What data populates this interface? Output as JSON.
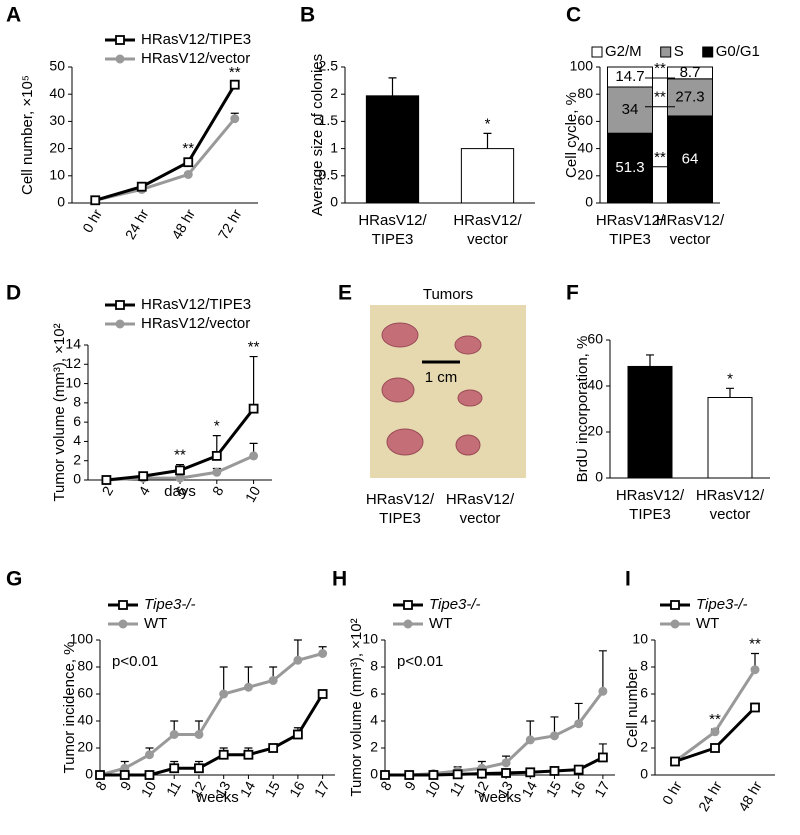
{
  "chart_data": [
    {
      "panel": "A",
      "type": "line",
      "categories": [
        "0 hr",
        "24 hr",
        "48 hr",
        "72 hr"
      ],
      "y_label": "Cell number, ×10⁵",
      "ylim": [
        0,
        50
      ],
      "yticks": [
        0,
        10,
        20,
        30,
        40,
        50
      ],
      "series": [
        {
          "name": "HRasV12/TIPE3",
          "color": "#000000",
          "marker": "square",
          "values": [
            1,
            6,
            15,
            43.5
          ],
          "errors": [
            0.3,
            0.5,
            1.5,
            1
          ]
        },
        {
          "name": "HRasV12/vector",
          "color": "#999999",
          "marker": "circle",
          "values": [
            1,
            5,
            10.5,
            31
          ],
          "errors": [
            0.3,
            0.5,
            0.5,
            2
          ]
        }
      ],
      "significance": [
        null,
        null,
        "**",
        "**"
      ]
    },
    {
      "panel": "B",
      "type": "bar",
      "categories": [
        [
          "HRasV12/",
          "TIPE3"
        ],
        [
          "HRasV12/",
          "vector"
        ]
      ],
      "y_label": "Average size of colonies",
      "ylim": [
        0,
        2.5
      ],
      "yticks": [
        0,
        0.5,
        1,
        1.5,
        2,
        2.5
      ],
      "values": [
        1.97,
        1.0
      ],
      "errors": [
        0.33,
        0.28
      ],
      "colors": [
        "#000000",
        "#ffffff"
      ],
      "significance": [
        null,
        "*"
      ]
    },
    {
      "panel": "C",
      "type": "stacked_bar",
      "categories": [
        [
          "HRasV12/",
          "TIPE3"
        ],
        [
          "HRasV12/",
          "vector"
        ]
      ],
      "y_label": "Cell cycle, %",
      "ylim": [
        0,
        100
      ],
      "yticks": [
        0,
        20,
        40,
        60,
        80,
        100
      ],
      "series": [
        {
          "name": "G0/G1",
          "color": "#000000",
          "values": [
            51.3,
            64
          ]
        },
        {
          "name": "S",
          "color": "#999999",
          "values": [
            34,
            27.3
          ]
        },
        {
          "name": "G2/M",
          "color": "#ffffff",
          "values": [
            14.7,
            8.7
          ]
        }
      ],
      "significance": [
        "**",
        "**",
        "**"
      ]
    },
    {
      "panel": "D",
      "type": "line",
      "x": [
        2,
        4,
        6,
        8,
        10
      ],
      "xlim": [
        1,
        11
      ],
      "xticks": [
        2,
        4,
        6,
        8,
        10
      ],
      "x_label": "days",
      "y_label": "Tumor volume (mm³), ×10²",
      "ylim": [
        0,
        14
      ],
      "yticks": [
        0,
        2,
        4,
        6,
        8,
        10,
        12,
        14
      ],
      "series": [
        {
          "name": "HRasV12/TIPE3",
          "color": "#000000",
          "marker": "square",
          "values": [
            0,
            0.4,
            1.0,
            2.5,
            7.4
          ],
          "errors": [
            0.1,
            0.3,
            0.6,
            2.1,
            5.4
          ]
        },
        {
          "name": "HRasV12/vector",
          "color": "#999999",
          "marker": "circle",
          "values": [
            0,
            0.2,
            0.2,
            0.8,
            2.5
          ],
          "errors": [
            0.05,
            0.1,
            0.1,
            0.4,
            1.3
          ]
        }
      ],
      "significance": [
        null,
        null,
        "**",
        "*",
        "**"
      ]
    },
    {
      "panel": "E",
      "type": "photo",
      "title": "Tumors",
      "annotation": "1 cm",
      "categories": [
        [
          "HRasV12/",
          "TIPE3"
        ],
        [
          "HRasV12/",
          "vector"
        ]
      ]
    },
    {
      "panel": "F",
      "type": "bar",
      "categories": [
        [
          "HRasV12/",
          "TIPE3"
        ],
        [
          "HRasV12/",
          "vector"
        ]
      ],
      "y_label": "BrdU incorporation, %",
      "ylim": [
        0,
        60
      ],
      "yticks": [
        0,
        20,
        40,
        60
      ],
      "values": [
        48.5,
        35
      ],
      "errors": [
        5,
        4
      ],
      "colors": [
        "#000000",
        "#ffffff"
      ],
      "significance": [
        null,
        "*"
      ]
    },
    {
      "panel": "G",
      "type": "line",
      "x": [
        8,
        9,
        10,
        11,
        12,
        13,
        14,
        15,
        16,
        17
      ],
      "xlim": [
        8,
        17.5
      ],
      "xticks": [
        8,
        9,
        10,
        11,
        12,
        13,
        14,
        15,
        16,
        17
      ],
      "x_label": "weeks",
      "y_label": "Tumor incidence, %",
      "ylim": [
        0,
        100
      ],
      "yticks": [
        0,
        20,
        40,
        60,
        80,
        100
      ],
      "annotation": "p<0.01",
      "series": [
        {
          "name": "Tipe3-/-",
          "italic": true,
          "color": "#000000",
          "marker": "square",
          "values": [
            0,
            0,
            0,
            5,
            5,
            15,
            15,
            20,
            30,
            60
          ],
          "errors": [
            0,
            0,
            0,
            5,
            5,
            5,
            5,
            2,
            5,
            2
          ]
        },
        {
          "name": "WT",
          "color": "#999999",
          "marker": "circle",
          "values": [
            0,
            5,
            15,
            30,
            30,
            60,
            65,
            70,
            85,
            90
          ],
          "errors": [
            0,
            5,
            5,
            10,
            10,
            20,
            15,
            10,
            15,
            5
          ]
        }
      ]
    },
    {
      "panel": "H",
      "type": "line",
      "x": [
        8,
        9,
        10,
        11,
        12,
        13,
        14,
        15,
        16,
        17
      ],
      "xlim": [
        8,
        17.5
      ],
      "xticks": [
        8,
        9,
        10,
        11,
        12,
        13,
        14,
        15,
        16,
        17
      ],
      "x_label": "weeks",
      "y_label": "Tumor volume (mm³), ×10²",
      "ylim": [
        0,
        10
      ],
      "yticks": [
        0,
        2,
        4,
        6,
        8,
        10
      ],
      "annotation": "p<0.01",
      "series": [
        {
          "name": "Tipe3-/-",
          "italic": true,
          "color": "#000000",
          "marker": "square",
          "values": [
            0,
            0,
            0,
            0.05,
            0.1,
            0.15,
            0.2,
            0.3,
            0.4,
            1.3
          ],
          "errors": [
            0,
            0,
            0,
            0.05,
            0.05,
            0.05,
            0.1,
            0.1,
            0.2,
            1
          ]
        },
        {
          "name": "WT",
          "color": "#999999",
          "marker": "circle",
          "values": [
            0,
            0,
            0.1,
            0.3,
            0.5,
            0.9,
            2.6,
            2.9,
            3.8,
            6.2
          ],
          "errors": [
            0,
            0,
            0.1,
            0.3,
            0.5,
            0.5,
            1.4,
            1.4,
            1.5,
            3.0
          ]
        }
      ]
    },
    {
      "panel": "I",
      "type": "line",
      "categories": [
        "0 hr",
        "24 hr",
        "48 hr"
      ],
      "y_label": "Cell number",
      "ylim": [
        0,
        10
      ],
      "yticks": [
        0,
        2,
        4,
        6,
        8,
        10
      ],
      "series": [
        {
          "name": "Tipe3-/-",
          "italic": true,
          "color": "#000000",
          "marker": "square",
          "values": [
            1,
            2,
            5
          ],
          "errors": [
            0.1,
            0.1,
            0.3
          ]
        },
        {
          "name": "WT",
          "color": "#999999",
          "marker": "circle",
          "values": [
            1,
            3.2,
            7.8
          ],
          "errors": [
            0.1,
            0.2,
            1.2
          ]
        }
      ],
      "significance": [
        null,
        "**",
        "**"
      ]
    }
  ]
}
